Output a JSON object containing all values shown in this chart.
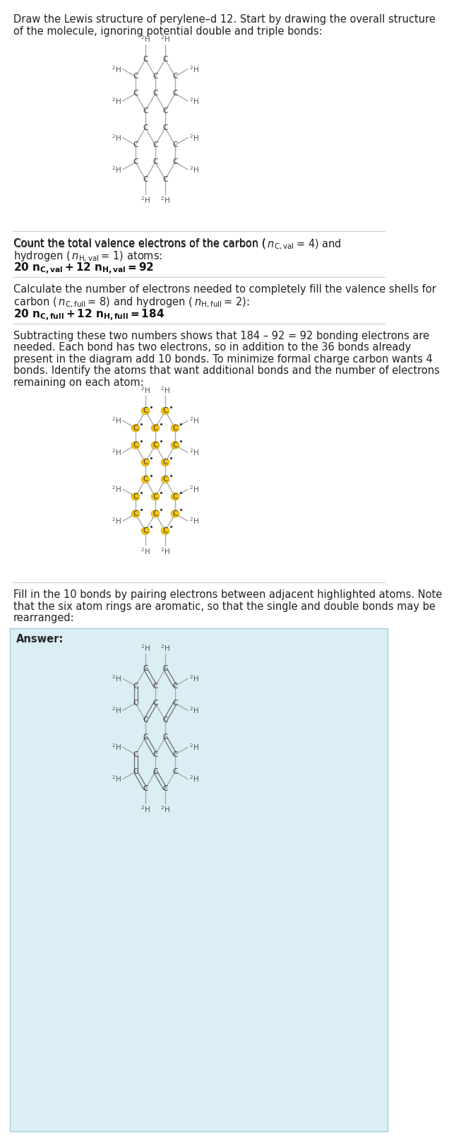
{
  "bg_color": "#ffffff",
  "answer_bg": "#daeef3",
  "answer_border": "#a8cdd8",
  "line_color": "#aaaaaa",
  "text_color": "#333333",
  "highlight_fill": "#f5c518",
  "highlight_edge": "#c8a000",
  "title_lines": [
    "Draw the Lewis structure of perylene–d 12. Start by drawing the overall structure",
    "of the molecule, ignoring potential double and triple bonds:"
  ],
  "sec2_lines": [
    "Count the total valence electrons of the carbon (n₂ᴄ,val₂ = 4) and",
    "hydrogen (n₂ʜ,val₂ = 1) atoms:"
  ],
  "sec2_formula": "20 n₂ᴄ,val₂ + 12 n₂ʜ,val₂ = 92",
  "sec3_lines": [
    "Calculate the number of electrons needed to completely fill the valence shells for",
    "carbon (n₂ᴄ,full₂ = 8) and hydrogen (n₂ʜ,full₂ = 2):"
  ],
  "sec3_formula": "20 n₂ᴄ,full₂ + 12 n₂ʜ,full₂ = 184",
  "sec4_lines": [
    "Subtracting these two numbers shows that 184 – 92 = 92 bonding electrons are",
    "needed. Each bond has two electrons, so in addition to the 36 bonds already",
    "present in the diagram add 10 bonds. To minimize formal charge carbon wants 4",
    "bonds. Identify the atoms that want additional bonds and the number of electrons",
    "remaining on each atom:"
  ],
  "sec5_lines": [
    "Fill in the 10 bonds by pairing electrons between adjacent highlighted atoms. Note",
    "that the six atom rings are aromatic, so that the single and double bonds may be",
    "rearranged:"
  ],
  "answer_label": "Answer:"
}
